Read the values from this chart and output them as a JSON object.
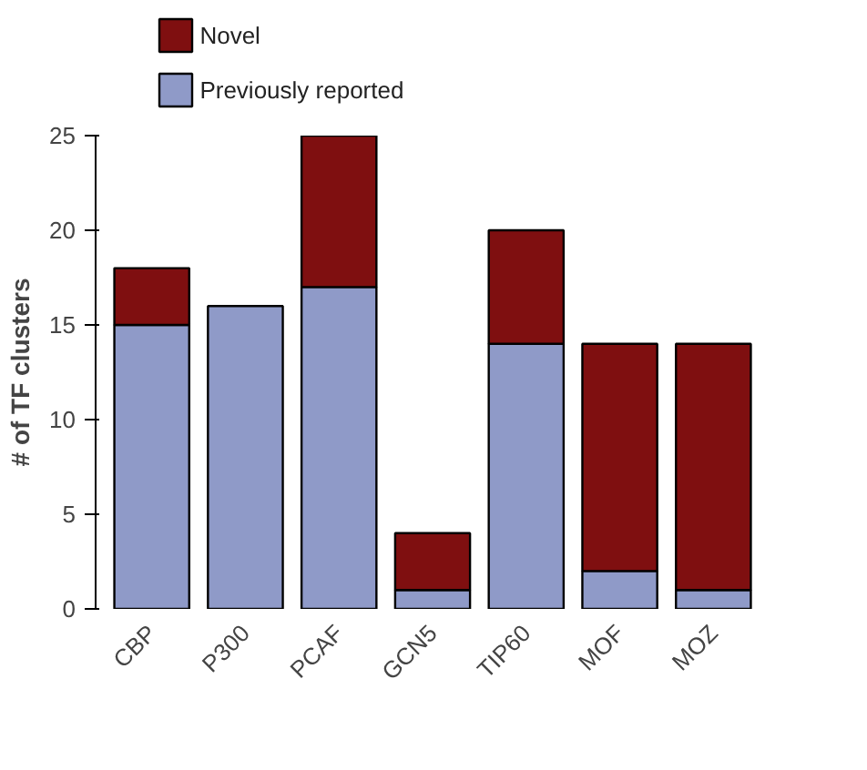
{
  "chart_data": {
    "type": "bar",
    "stacked": true,
    "ylabel": "# of TF clusters",
    "categories": [
      "CBP",
      "P300",
      "PCAF",
      "GCN5",
      "TIP60",
      "MOF",
      "MOZ"
    ],
    "series": [
      {
        "name": "Previously reported",
        "color": "#8f9ac8",
        "values": [
          15,
          16,
          17,
          1,
          14,
          2,
          1
        ]
      },
      {
        "name": "Novel",
        "color": "#7f0f10",
        "values": [
          3,
          0,
          8,
          3,
          6,
          12,
          13
        ]
      }
    ],
    "ylim": [
      0,
      25
    ],
    "yticks": [
      0,
      5,
      10,
      15,
      20,
      25
    ],
    "legend": "top left",
    "grid": false
  }
}
